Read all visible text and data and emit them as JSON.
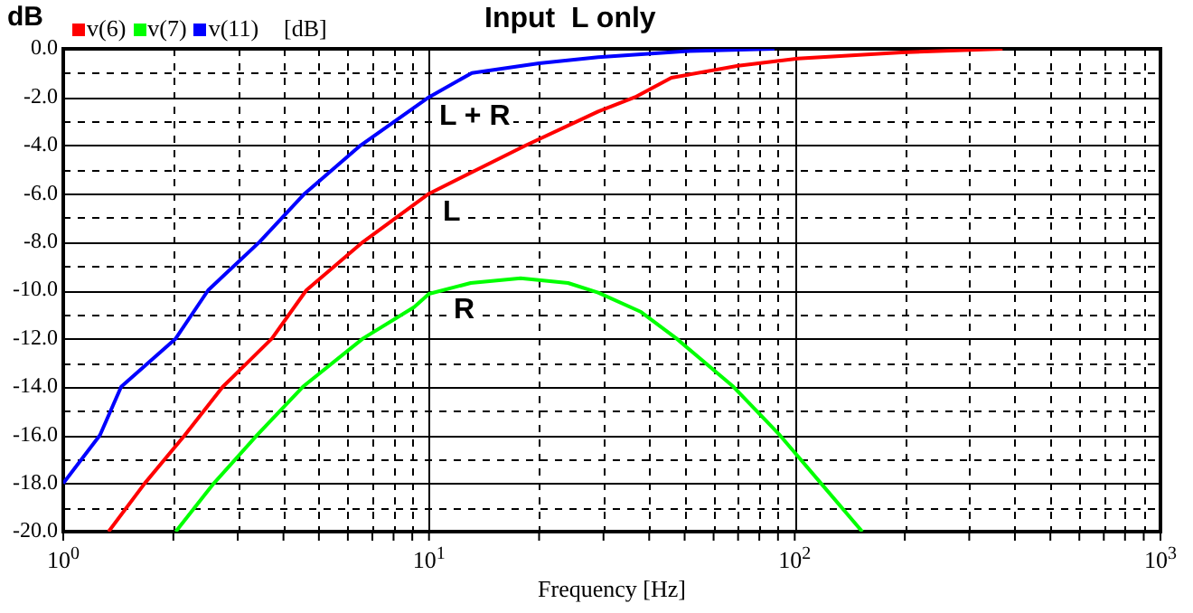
{
  "chart_data": {
    "type": "line",
    "title": "Input  L only",
    "xlabel": "Frequency [Hz]",
    "ylabel": "dB",
    "legend_title": "[dB]",
    "log": "x",
    "grid": true,
    "legend": "top left",
    "marker": "none",
    "line_style": "solid",
    "xlim": [
      1,
      1000
    ],
    "xticks": [
      {
        "value": 1,
        "label": "10$^{0}$"
      },
      {
        "value": 2,
        "label": null
      },
      {
        "value": 3,
        "label": null
      },
      {
        "value": 4,
        "label": null
      },
      {
        "value": 5,
        "label": null
      },
      {
        "value": 6,
        "label": null
      },
      {
        "value": 7,
        "label": null
      },
      {
        "value": 8,
        "label": null
      },
      {
        "value": 9,
        "label": null
      },
      {
        "value": 10,
        "label": "10$^{1}$"
      },
      {
        "value": 20,
        "label": null
      },
      {
        "value": 30,
        "label": null
      },
      {
        "value": 40,
        "label": null
      },
      {
        "value": 50,
        "label": null
      },
      {
        "value": 60,
        "label": null
      },
      {
        "value": 70,
        "label": null
      },
      {
        "value": 80,
        "label": null
      },
      {
        "value": 90,
        "label": null
      },
      {
        "value": 100,
        "label": "10$^{2}$"
      },
      {
        "value": 200,
        "label": null
      },
      {
        "value": 300,
        "label": null
      },
      {
        "value": 400,
        "label": null
      },
      {
        "value": 500,
        "label": null
      },
      {
        "value": 600,
        "label": null
      },
      {
        "value": 700,
        "label": null
      },
      {
        "value": 800,
        "label": null
      },
      {
        "value": 900,
        "label": null
      },
      {
        "value": 1000,
        "label": "10$^{3}$"
      }
    ],
    "ylim": [
      -20,
      0
    ],
    "yticks": [
      {
        "value": -20,
        "label": "-20.0"
      },
      {
        "value": -19,
        "label": null
      },
      {
        "value": -18,
        "label": "-18.0"
      },
      {
        "value": -17,
        "label": null
      },
      {
        "value": -16,
        "label": "-16.0"
      },
      {
        "value": -15,
        "label": null
      },
      {
        "value": -14,
        "label": "-14.0"
      },
      {
        "value": -13,
        "label": null
      },
      {
        "value": -12,
        "label": "-12.0"
      },
      {
        "value": -11,
        "label": null
      },
      {
        "value": -10,
        "label": "-10.0"
      },
      {
        "value": -9,
        "label": null
      },
      {
        "value": -8,
        "label": "-8.0"
      },
      {
        "value": -7,
        "label": null
      },
      {
        "value": -6,
        "label": "-6.0"
      },
      {
        "value": -5,
        "label": null
      },
      {
        "value": -4,
        "label": "-4.0"
      },
      {
        "value": -3,
        "label": null
      },
      {
        "value": -2,
        "label": "-2.0"
      },
      {
        "value": -1,
        "label": null
      },
      {
        "value": 0,
        "label": "0.0"
      }
    ],
    "series": [
      {
        "name": "v(6)",
        "color": "#ff0000",
        "x": [
          1.33,
          1.67,
          2.15,
          2.73,
          3.72,
          4.62,
          6.6,
          10,
          18.4,
          29,
          36.6,
          46,
          70,
          102,
          196,
          370
        ],
        "values": [
          -20,
          -18,
          -16,
          -14,
          -12,
          -10,
          -8,
          -6,
          -4,
          -2.6,
          -2,
          -1.2,
          -0.7,
          -0.4,
          -0.15,
          0
        ]
      },
      {
        "name": "v(7)",
        "color": "#00ff00",
        "x": [
          2.03,
          2.58,
          3.39,
          4.52,
          6.6,
          9.1,
          10,
          13,
          17.8,
          24,
          29,
          38,
          47.5,
          68,
          91,
          118,
          153
        ],
        "values": [
          -20,
          -18,
          -16,
          -14,
          -12,
          -10.7,
          -10.15,
          -9.7,
          -9.5,
          -9.7,
          -10.1,
          -10.9,
          -12,
          -14,
          -16,
          -18,
          -20
        ]
      },
      {
        "name": "v(11)",
        "color": "#0000ff",
        "x": [
          1,
          1.26,
          1.44,
          2.03,
          2.49,
          3.44,
          4.57,
          6.5,
          10,
          13.1,
          20,
          29,
          50,
          88
        ],
        "values": [
          -18,
          -16,
          -14,
          -12,
          -10,
          -8,
          -6,
          -4,
          -2,
          -1,
          -0.6,
          -0.35,
          -0.1,
          0
        ]
      }
    ],
    "annotations": [
      "L + R",
      "L",
      "R"
    ]
  }
}
